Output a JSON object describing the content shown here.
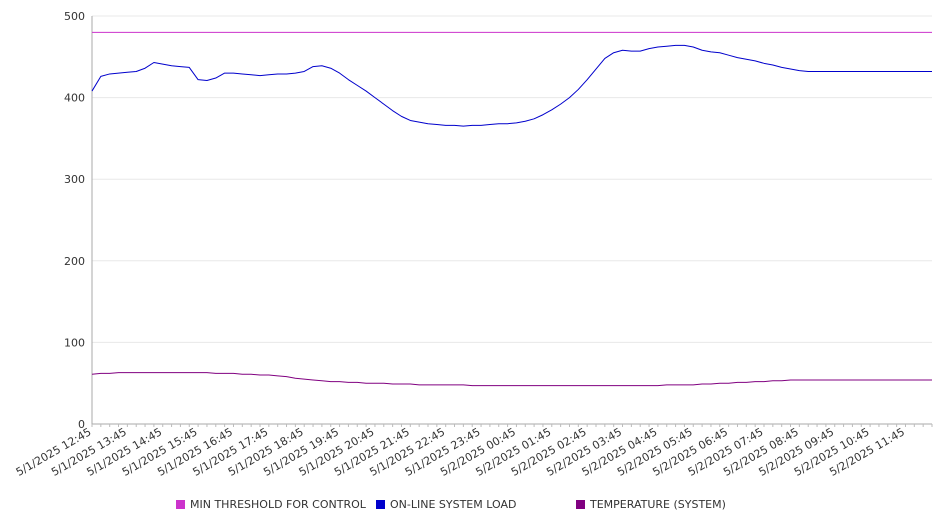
{
  "chart_data": {
    "type": "line",
    "title": "",
    "xlabel": "",
    "ylabel": "",
    "ylim": [
      0,
      500
    ],
    "yticks": [
      0,
      100,
      200,
      300,
      400,
      500
    ],
    "grid": true,
    "legend_position": "bottom",
    "x_start": "5/1/2025 12:45",
    "x_step_minutes": 15,
    "x_tick_labels": [
      "5/1/2025 12:45",
      "5/1/2025 13:45",
      "5/1/2025 14:45",
      "5/1/2025 15:45",
      "5/1/2025 16:45",
      "5/1/2025 17:45",
      "5/1/2025 18:45",
      "5/1/2025 19:45",
      "5/1/2025 20:45",
      "5/1/2025 21:45",
      "5/1/2025 22:45",
      "5/1/2025 23:45",
      "5/2/2025 00:45",
      "5/2/2025 01:45",
      "5/2/2025 02:45",
      "5/2/2025 03:45",
      "5/2/2025 04:45",
      "5/2/2025 05:45",
      "5/2/2025 06:45",
      "5/2/2025 07:45",
      "5/2/2025 08:45",
      "5/2/2025 09:45",
      "5/2/2025 10:45",
      "5/2/2025 11:45"
    ],
    "series": [
      {
        "name": "MIN THRESHOLD FOR CONTROL",
        "color": "#cc33cc",
        "values": [
          480,
          480,
          480,
          480,
          480,
          480,
          480,
          480,
          480,
          480,
          480,
          480,
          480,
          480,
          480,
          480,
          480,
          480,
          480,
          480,
          480,
          480,
          480,
          480,
          480,
          480,
          480,
          480,
          480,
          480,
          480,
          480,
          480,
          480,
          480,
          480,
          480,
          480,
          480,
          480,
          480,
          480,
          480,
          480,
          480,
          480,
          480,
          480,
          480,
          480,
          480,
          480,
          480,
          480,
          480,
          480,
          480,
          480,
          480,
          480,
          480,
          480,
          480,
          480,
          480,
          480,
          480,
          480,
          480,
          480,
          480,
          480,
          480,
          480,
          480,
          480,
          480,
          480,
          480,
          480,
          480,
          480,
          480,
          480,
          480,
          480,
          480,
          480,
          480,
          480,
          480,
          480,
          480,
          480,
          480,
          480
        ]
      },
      {
        "name": "ON-LINE SYSTEM LOAD",
        "color": "#0000cc",
        "values": [
          408,
          426,
          429,
          430,
          431,
          432,
          436,
          443,
          441,
          439,
          438,
          437,
          422,
          421,
          424,
          430,
          430,
          429,
          428,
          427,
          428,
          429,
          429,
          430,
          432,
          438,
          439,
          436,
          430,
          422,
          415,
          408,
          400,
          392,
          384,
          377,
          372,
          370,
          368,
          367,
          366,
          366,
          365,
          366,
          366,
          367,
          368,
          368,
          369,
          371,
          374,
          379,
          385,
          392,
          400,
          410,
          422,
          435,
          448,
          455,
          458,
          457,
          457,
          460,
          462,
          463,
          464,
          464,
          462,
          458,
          456,
          455,
          452,
          449,
          447,
          445,
          442,
          440,
          437,
          435,
          433,
          432,
          432,
          432,
          432,
          432,
          432,
          432,
          432,
          432,
          432,
          432,
          432,
          432,
          432,
          432
        ]
      },
      {
        "name": "TEMPERATURE (SYSTEM)",
        "color": "#800080",
        "values": [
          61,
          62,
          62,
          63,
          63,
          63,
          63,
          63,
          63,
          63,
          63,
          63,
          63,
          63,
          62,
          62,
          62,
          61,
          61,
          60,
          60,
          59,
          58,
          56,
          55,
          54,
          53,
          52,
          52,
          51,
          51,
          50,
          50,
          50,
          49,
          49,
          49,
          48,
          48,
          48,
          48,
          48,
          48,
          47,
          47,
          47,
          47,
          47,
          47,
          47,
          47,
          47,
          47,
          47,
          47,
          47,
          47,
          47,
          47,
          47,
          47,
          47,
          47,
          47,
          47,
          48,
          48,
          48,
          48,
          49,
          49,
          50,
          50,
          51,
          51,
          52,
          52,
          53,
          53,
          54,
          54,
          54,
          54,
          54,
          54,
          54,
          54,
          54,
          54,
          54,
          54,
          54,
          54,
          54,
          54,
          54
        ]
      }
    ]
  }
}
